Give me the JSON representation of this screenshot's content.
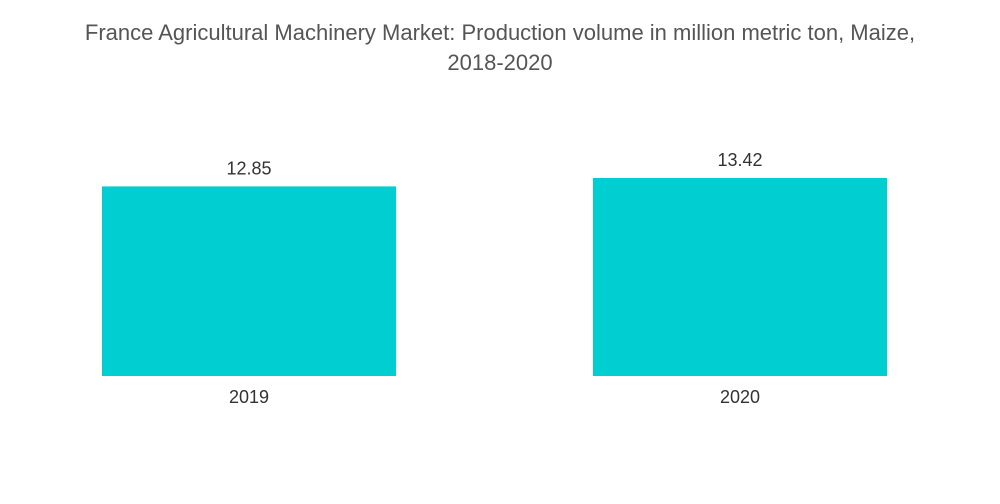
{
  "chart_data": {
    "type": "bar",
    "title": "France Agricultural Machinery Market: Production volume in million metric ton, Maize, 2018-2020",
    "title_lines": [
      "France Agricultural Machinery Market: Production volume in million metric ton, Maize,",
      "2018-2020"
    ],
    "categories": [
      "2019",
      "2020"
    ],
    "values": [
      12.85,
      13.42
    ],
    "value_labels": [
      "12.85",
      "13.42"
    ],
    "xlabel": "",
    "ylabel": "",
    "ylim": [
      0,
      13.42
    ],
    "grid": false,
    "legend": "none",
    "colors": {
      "bar": "#00CED1",
      "title": "#555555",
      "text": "#333333"
    }
  }
}
